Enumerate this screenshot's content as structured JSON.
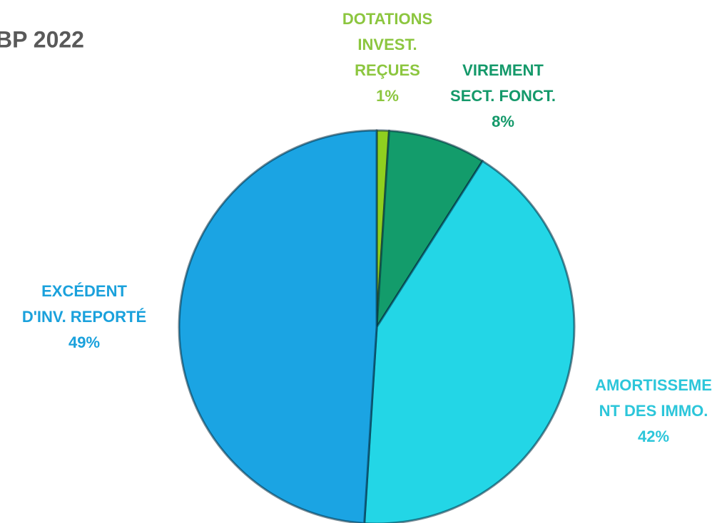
{
  "chart_data": {
    "type": "pie",
    "title": "BP 2022",
    "categories": [
      [
        "DOTATIONS",
        "INVEST.",
        "REÇUES"
      ],
      [
        "VIREMENT",
        "SECT. FONCT."
      ],
      [
        "AMORTISSEME",
        "NT DES IMMO."
      ],
      [
        "EXCÉDENT",
        "D'INV. REPORTÉ"
      ]
    ],
    "values": [
      1,
      8,
      42,
      49
    ],
    "value_labels": [
      "1%",
      "8%",
      "42%",
      "49%"
    ],
    "colors": [
      "#8fcf1f",
      "#139c6b",
      "#23d6e6",
      "#1ba4e3"
    ],
    "label_colors": [
      "#8cc63f",
      "#14996a",
      "#2cc6da",
      "#1aa1dc"
    ]
  }
}
